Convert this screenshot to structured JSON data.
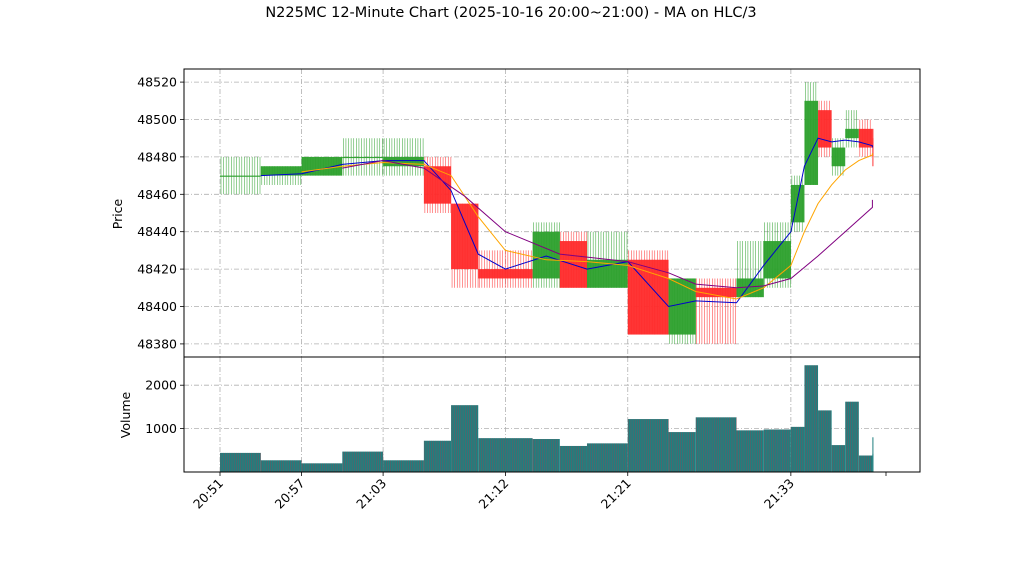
{
  "chart_data": {
    "type": "candlestick",
    "title": "N225MC 12-Minute Chart (2025-10-16 20:00~21:00) - MA on HLC/3",
    "price_panel": {
      "ylabel": "Price",
      "ylim": [
        48373,
        48527
      ],
      "yticks": [
        48380,
        48400,
        48420,
        48440,
        48460,
        48480,
        48500,
        48520
      ],
      "grid": true
    },
    "volume_panel": {
      "ylabel": "Volume",
      "ylim": [
        0,
        2650
      ],
      "yticks": [
        1000,
        2000
      ],
      "grid": true,
      "bar_color": "#1f7f7f"
    },
    "xlim": [
      20.51,
      21.4
    ],
    "xticks": [
      {
        "x": 20.51,
        "label": "20:51"
      },
      {
        "x": 20.57,
        "label": "20:57"
      },
      {
        "x": 21.03,
        "label": "21:03"
      },
      {
        "x": 21.12,
        "label": "21:12"
      },
      {
        "x": 21.21,
        "label": "21:21"
      },
      {
        "x": 21.33,
        "label": "21:33"
      }
    ],
    "colors": {
      "up": "#2ca02c",
      "down": "#ff2a2a",
      "ma_short": "#0000cc",
      "ma_mid": "#ffa500",
      "ma_long": "#800080",
      "grid": "#b0b0b0"
    },
    "candles": [
      {
        "x0": 20.51,
        "x1": 20.54,
        "open": 48470,
        "high": 48480,
        "low": 48460,
        "close": 48470,
        "volume": 440
      },
      {
        "x0": 20.54,
        "x1": 20.57,
        "open": 48470,
        "high": 48475,
        "low": 48465,
        "close": 48475,
        "volume": 270
      },
      {
        "x0": 20.57,
        "x1": 20.6,
        "open": 48470,
        "high": 48480,
        "low": 48470,
        "close": 48480,
        "volume": 200
      },
      {
        "x0": 20.6,
        "x1": 21.03,
        "open": 48480,
        "high": 48490,
        "low": 48470,
        "close": 48480,
        "volume": 470
      },
      {
        "x0": 21.03,
        "x1": 21.06,
        "open": 48475,
        "high": 48490,
        "low": 48470,
        "close": 48480,
        "volume": 270
      },
      {
        "x0": 21.06,
        "x1": 21.08,
        "open": 48475,
        "high": 48480,
        "low": 48450,
        "close": 48455,
        "volume": 720
      },
      {
        "x0": 21.08,
        "x1": 21.1,
        "open": 48455,
        "high": 48455,
        "low": 48410,
        "close": 48420,
        "volume": 1540
      },
      {
        "x0": 21.1,
        "x1": 21.14,
        "open": 48420,
        "high": 48430,
        "low": 48410,
        "close": 48415,
        "volume": 780
      },
      {
        "x0": 21.14,
        "x1": 21.16,
        "open": 48415,
        "high": 48445,
        "low": 48410,
        "close": 48440,
        "volume": 760
      },
      {
        "x0": 21.16,
        "x1": 21.18,
        "open": 48435,
        "high": 48440,
        "low": 48410,
        "close": 48410,
        "volume": 600
      },
      {
        "x0": 21.18,
        "x1": 21.21,
        "open": 48410,
        "high": 48440,
        "low": 48410,
        "close": 48425,
        "volume": 660
      },
      {
        "x0": 21.21,
        "x1": 21.24,
        "open": 48425,
        "high": 48430,
        "low": 48385,
        "close": 48385,
        "volume": 1220
      },
      {
        "x0": 21.24,
        "x1": 21.26,
        "open": 48385,
        "high": 48415,
        "low": 48380,
        "close": 48415,
        "volume": 920
      },
      {
        "x0": 21.26,
        "x1": 21.29,
        "open": 48410,
        "high": 48415,
        "low": 48380,
        "close": 48405,
        "volume": 1260
      },
      {
        "x0": 21.29,
        "x1": 21.31,
        "open": 48405,
        "high": 48435,
        "low": 48405,
        "close": 48415,
        "volume": 960
      },
      {
        "x0": 21.31,
        "x1": 21.33,
        "open": 48415,
        "high": 48445,
        "low": 48410,
        "close": 48435,
        "volume": 980
      },
      {
        "x0": 21.33,
        "x1": 21.34,
        "open": 48445,
        "high": 48470,
        "low": 48440,
        "close": 48465,
        "volume": 1040
      },
      {
        "x0": 21.34,
        "x1": 21.35,
        "open": 48465,
        "high": 48520,
        "low": 48465,
        "close": 48510,
        "volume": 2460
      },
      {
        "x0": 21.35,
        "x1": 21.36,
        "open": 48505,
        "high": 48510,
        "low": 48480,
        "close": 48485,
        "volume": 1420
      },
      {
        "x0": 21.36,
        "x1": 21.37,
        "open": 48475,
        "high": 48490,
        "low": 48470,
        "close": 48485,
        "volume": 620
      },
      {
        "x0": 21.37,
        "x1": 21.38,
        "open": 48490,
        "high": 48505,
        "low": 48485,
        "close": 48495,
        "volume": 1620
      },
      {
        "x0": 21.38,
        "x1": 21.385,
        "open": 48495,
        "high": 48500,
        "low": 48480,
        "close": 48485,
        "volume": 380
      },
      {
        "x0": 21.385,
        "x1": 21.39,
        "open": 48490,
        "high": 48495,
        "low": 48475,
        "close": 48480,
        "volume": 420
      },
      {
        "x0": 21.39,
        "x1": 21.395,
        "open": 48495,
        "high": 48495,
        "low": 48470,
        "close": 48475,
        "volume": 800
      }
    ],
    "series": [
      {
        "key": "ma_short",
        "x": [
          20.54,
          20.57,
          20.6,
          21.03,
          21.06,
          21.08,
          21.1,
          21.12,
          21.15,
          21.18,
          21.21,
          21.24,
          21.26,
          21.29,
          21.31,
          21.33,
          21.34,
          21.35,
          21.36,
          21.37,
          21.38,
          21.39,
          21.395
        ],
        "y": [
          48470,
          48471,
          48476,
          48478,
          48478,
          48462,
          48428,
          48420,
          48427,
          48420,
          48424,
          48400,
          48403,
          48402,
          48422,
          48440,
          48475,
          48490,
          48488,
          48489,
          48488,
          48486,
          48485
        ]
      },
      {
        "key": "ma_mid",
        "x": [
          20.57,
          20.6,
          21.03,
          21.06,
          21.08,
          21.1,
          21.12,
          21.15,
          21.18,
          21.21,
          21.24,
          21.26,
          21.29,
          21.31,
          21.33,
          21.34,
          21.35,
          21.36,
          21.37,
          21.38,
          21.39,
          21.395
        ],
        "y": [
          48472,
          48475,
          48477,
          48476,
          48470,
          48448,
          48430,
          48425,
          48424,
          48422,
          48415,
          48408,
          48404,
          48410,
          48422,
          48440,
          48455,
          48465,
          48473,
          48478,
          48481,
          48482
        ]
      },
      {
        "key": "ma_long",
        "x": [
          20.6,
          21.03,
          21.06,
          21.09,
          21.12,
          21.16,
          21.21,
          21.24,
          21.26,
          21.29,
          21.31,
          21.33,
          21.35,
          21.37,
          21.39,
          21.395
        ],
        "y": [
          48474,
          48478,
          48474,
          48459,
          48440,
          48428,
          48424,
          48418,
          48412,
          48410,
          48411,
          48415,
          48427,
          48440,
          48453,
          48457
        ]
      }
    ]
  }
}
